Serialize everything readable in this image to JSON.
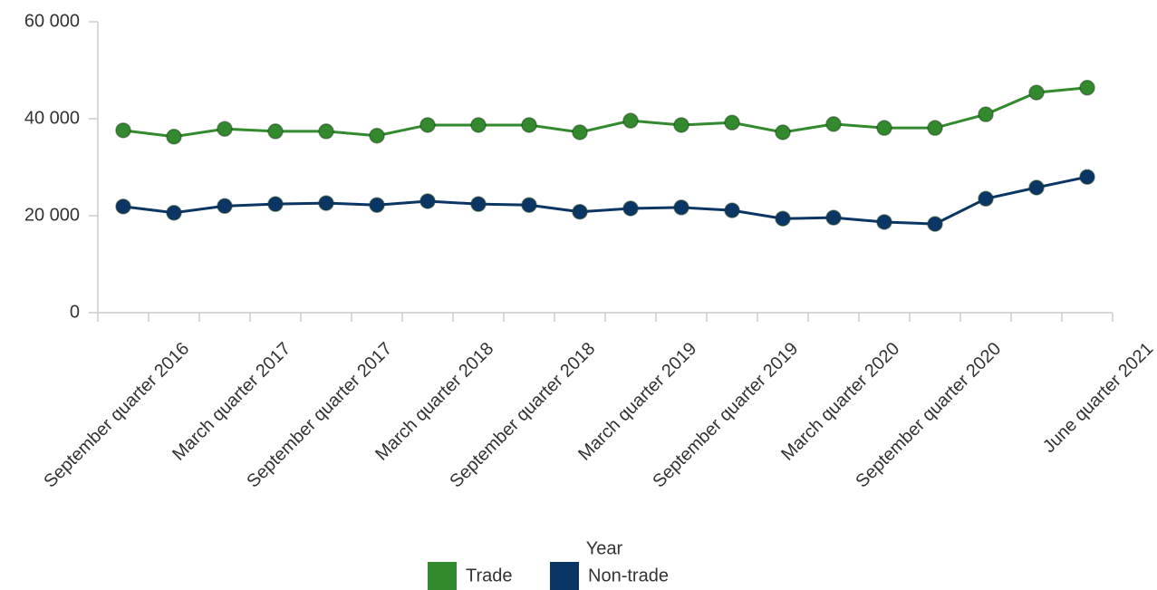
{
  "chart_data": {
    "type": "line",
    "categories": [
      "September quarter 2016",
      null,
      "March quarter 2017",
      null,
      "September quarter 2017",
      null,
      "March quarter 2018",
      null,
      "September quarter 2018",
      null,
      "March quarter 2019",
      null,
      "September quarter 2019",
      null,
      "March quarter 2020",
      null,
      "September quarter 2020",
      null,
      null,
      "June quarter 2021"
    ],
    "series": [
      {
        "name": "Trade",
        "color": "#338a2e",
        "values": [
          37600,
          36300,
          37900,
          37400,
          37400,
          36500,
          38700,
          38700,
          38700,
          37200,
          39600,
          38700,
          39200,
          37200,
          38900,
          38100,
          38100,
          40900,
          45400,
          46400
        ]
      },
      {
        "name": "Non-trade",
        "color": "#0b3565",
        "values": [
          21900,
          20600,
          22000,
          22400,
          22600,
          22200,
          23000,
          22400,
          22200,
          20800,
          21500,
          21700,
          21100,
          19400,
          19600,
          18700,
          18300,
          23500,
          25800,
          28000
        ]
      }
    ],
    "ylim": [
      0,
      60000
    ],
    "yticks": [
      0,
      {
        "value": 20000,
        "label": "20 000"
      },
      {
        "value": 40000,
        "label": "40 000"
      },
      {
        "value": 60000,
        "label": "60 000"
      }
    ],
    "legend_title": "Year",
    "legend": "bottom"
  }
}
